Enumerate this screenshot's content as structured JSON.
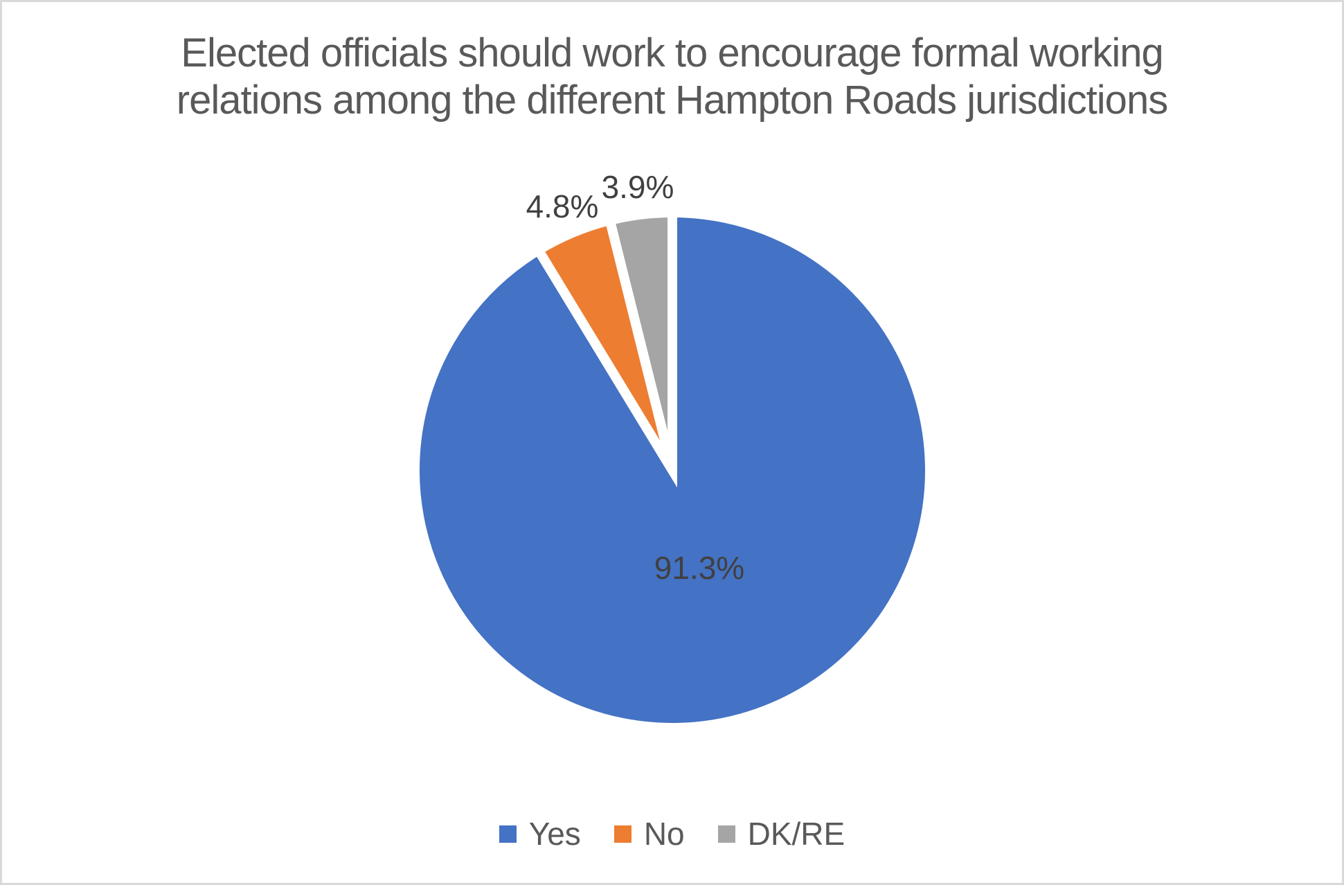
{
  "frame": {
    "background": "#FFFFFF",
    "border_color": "#D9D9D9"
  },
  "chart_data": {
    "type": "pie",
    "title": "Elected officials should work to encourage formal working relations among the different Hampton Roads jurisdictions",
    "title_lines": [
      "Elected officials should work to encourage formal working",
      "relations among the different Hampton Roads jurisdictions"
    ],
    "title_color": "#595959",
    "data_label_color": "#404040",
    "slice_border_color": "#FFFFFF",
    "start_angle_deg": 0,
    "direction": "clockwise",
    "legend_position": "bottom",
    "categories": [
      "Yes",
      "No",
      "DK/RE"
    ],
    "values": [
      91.3,
      4.8,
      3.9
    ],
    "slices": [
      {
        "label": "Yes",
        "value": 91.3,
        "display": "91.3%",
        "color": "#4472C4",
        "label_placement": "inside"
      },
      {
        "label": "No",
        "value": 4.8,
        "display": "4.8%",
        "color": "#ED7D31",
        "label_placement": "outside"
      },
      {
        "label": "DK/RE",
        "value": 3.9,
        "display": "3.9%",
        "color": "#A5A5A5",
        "label_placement": "outside"
      }
    ]
  }
}
